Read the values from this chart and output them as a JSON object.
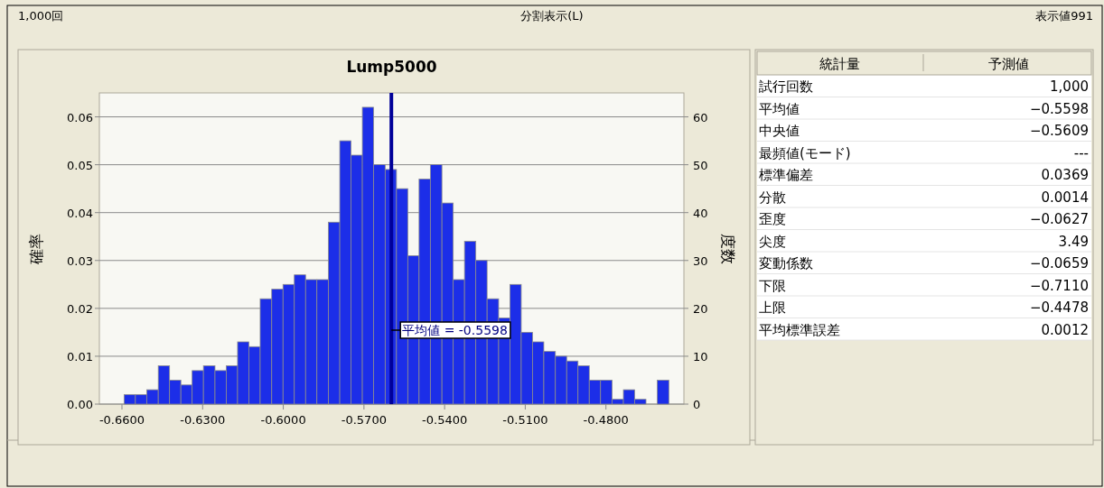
{
  "chart_data": [
    {
      "type": "histogram",
      "title": "Lump5000",
      "ylabel": "確率",
      "y2label": "度数",
      "bins": [
        -0.6592,
        -0.655,
        -0.6508,
        -0.6465,
        -0.6423,
        -0.6381,
        -0.6339,
        -0.6297,
        -0.6254,
        -0.6212,
        -0.617,
        -0.6128,
        -0.6086,
        -0.6043,
        -0.6001,
        -0.5959,
        -0.5917,
        -0.5875,
        -0.5832,
        -0.579,
        -0.5748,
        -0.5706,
        -0.5664,
        -0.5621,
        -0.5579,
        -0.5537,
        -0.5495,
        -0.5453,
        -0.541,
        -0.5368,
        -0.5326,
        -0.5284,
        -0.5242,
        -0.5199,
        -0.5157,
        -0.5115,
        -0.5073,
        -0.5031,
        -0.4988,
        -0.4946,
        -0.4904,
        -0.4862,
        -0.482,
        -0.4777,
        -0.4735,
        -0.4693,
        -0.4651,
        -0.4609,
        -0.4566
      ],
      "values": [
        0.002,
        0.002,
        0.003,
        0.008,
        0.005,
        0.004,
        0.007,
        0.008,
        0.007,
        0.008,
        0.013,
        0.012,
        0.022,
        0.024,
        0.025,
        0.027,
        0.026,
        0.026,
        0.038,
        0.055,
        0.052,
        0.062,
        0.05,
        0.049,
        0.045,
        0.031,
        0.047,
        0.05,
        0.042,
        0.026,
        0.034,
        0.03,
        0.022,
        0.018,
        0.025,
        0.015,
        0.013,
        0.011,
        0.01,
        0.009,
        0.008,
        0.005,
        0.005,
        0.001,
        0.003,
        0.001,
        0,
        0.005
      ],
      "color": "#1c2ee8",
      "xlim": [
        -0.6684,
        -0.451
      ],
      "xticks": [
        {
          "value": -0.66,
          "label": "-0.6600"
        },
        {
          "value": -0.63,
          "label": "-0.6300"
        },
        {
          "value": -0.6,
          "label": "-0.6000"
        },
        {
          "value": -0.57,
          "label": "-0.5700"
        },
        {
          "value": -0.54,
          "label": "-0.5400"
        },
        {
          "value": -0.51,
          "label": "-0.5100"
        },
        {
          "value": -0.48,
          "label": "-0.4800"
        }
      ],
      "ylim": [
        0,
        0.065
      ],
      "yticks": [
        {
          "value": 0,
          "label": "0.00"
        },
        {
          "value": 0.01,
          "label": "0.01"
        },
        {
          "value": 0.02,
          "label": "0.02"
        },
        {
          "value": 0.03,
          "label": "0.03"
        },
        {
          "value": 0.04,
          "label": "0.04"
        },
        {
          "value": 0.05,
          "label": "0.05"
        },
        {
          "value": 0.06,
          "label": "0.06"
        }
      ],
      "y2lim": [
        0,
        65
      ],
      "y2ticks": [
        0,
        10,
        20,
        30,
        40,
        50,
        60
      ],
      "grid": "y",
      "ref_lines": [
        {
          "axis": "x",
          "value": -0.5598,
          "label": "平均値 = -0.5598",
          "color": "#000099"
        }
      ],
      "annotations": [
        "1,000回",
        "分割表示(L)",
        "表示値991"
      ]
    },
    {
      "type": "other",
      "annotations": [
        "統計量",
        "予測値"
      ],
      "categories": [
        "試行回数",
        "平均値",
        "中央値",
        "最頻値(モード)",
        "標準偏差",
        "分散",
        "歪度",
        "尖度",
        "変動係数",
        "下限",
        "上限",
        "平均標準誤差"
      ],
      "value_labels": [
        "1,000",
        "−0.5598",
        "−0.5609",
        "---",
        "0.0369",
        "0.0014",
        "−0.0627",
        "3.49",
        "−0.0659",
        "−0.7110",
        "−0.4478",
        "0.0012"
      ]
    }
  ]
}
